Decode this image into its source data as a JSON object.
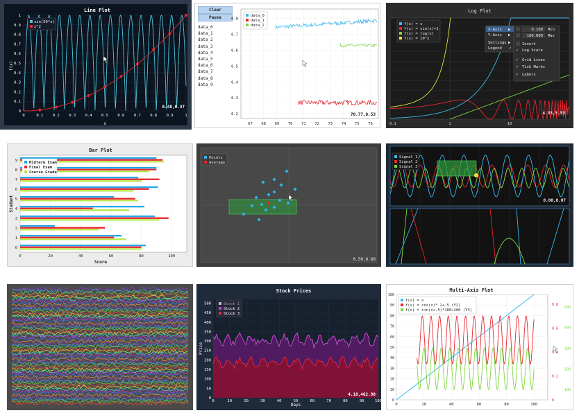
{
  "panel1": {
    "title": "Line Plot",
    "xlabel": "x",
    "ylabel": "f(x)",
    "legend": [
      "sin(50*x)",
      "x^2"
    ],
    "coord": "0.48,0.37",
    "xticks": [
      "0",
      "0.1",
      "0.2",
      "0.3",
      "0.4",
      "0.5",
      "0.6",
      "0.7",
      "0.8",
      "0.9",
      "1"
    ],
    "yticks": [
      "0",
      "0.1",
      "0.2",
      "0.3",
      "0.4",
      "0.5",
      "0.6",
      "0.7",
      "0.8",
      "0.9",
      "1"
    ],
    "colors": {
      "sin": "#4fc3d9",
      "sq": "#e8262e"
    }
  },
  "panel2": {
    "buttons": {
      "clear": "Clear",
      "pause": "Pause"
    },
    "items": [
      "data_0",
      "data_1",
      "data_2",
      "data_3",
      "data_4",
      "data_5",
      "data_6",
      "data_7",
      "data_8",
      "data_9"
    ],
    "legend": [
      "data_0",
      "data_1",
      "data_2"
    ],
    "coord": "70.77,0.53",
    "xticks": [
      "67",
      "68",
      "69",
      "70",
      "71",
      "72",
      "73",
      "74",
      "75",
      "76"
    ],
    "yticks": [
      "0.2",
      "0.3",
      "0.4",
      "0.5",
      "0.6",
      "0.7",
      "0.8"
    ]
  },
  "panel3": {
    "title": "Log Plot",
    "legend": [
      "f(x) = x",
      "f(x) = sin(x)+1",
      "f(x) = log(x)",
      "f(x) = 10^x"
    ],
    "menu": {
      "xaxis": "X-Axis",
      "yaxis": "Y-Axis",
      "settings": "Settings",
      "legend": "Legend"
    },
    "submenu": {
      "min_val": "0.100",
      "min_label": "Min",
      "max_val": "100.000",
      "max_label": "Max",
      "invert": "Invert",
      "log": "Log Scale",
      "grid": "Grid Lines",
      "ticks": "Tick Marks",
      "labels": "Labels"
    },
    "coord": "4.33,5.53",
    "xticks": [
      "0.1",
      "1",
      "10"
    ],
    "yticks": [
      "0",
      "1",
      "2",
      "3",
      "4",
      "5",
      "6",
      "7",
      "8",
      "9",
      "10"
    ]
  },
  "panel4": {
    "title": "Bar Plot",
    "xlabel": "Score",
    "ylabel": "Student",
    "legend": [
      "Midterm Exam",
      "Final Exam",
      "Course Grade"
    ],
    "xticks": [
      "0",
      "20",
      "40",
      "60",
      "80",
      "100"
    ],
    "yticks": [
      "0",
      "1",
      "2",
      "3",
      "4",
      "5",
      "6",
      "7",
      "8",
      "9"
    ],
    "chart_data": {
      "type": "bar",
      "categories": [
        "0",
        "1",
        "2",
        "3",
        "4",
        "5",
        "6",
        "7",
        "8",
        "9"
      ],
      "series": [
        {
          "name": "Midterm Exam",
          "values": [
            83,
            67,
            23,
            89,
            82,
            62,
            91,
            78,
            90,
            90
          ]
        },
        {
          "name": "Final Exam",
          "values": [
            80,
            62,
            56,
            98,
            48,
            76,
            85,
            92,
            90,
            94
          ]
        },
        {
          "name": "Course Grade",
          "values": [
            80,
            70,
            52,
            92,
            72,
            78,
            75,
            80,
            85,
            95
          ]
        }
      ],
      "xlim": [
        0,
        110
      ]
    },
    "colors": [
      "#22a7e8",
      "#e8262e",
      "#b7e84a"
    ]
  },
  "panel5": {
    "legend": [
      "Points",
      "Average"
    ],
    "coord": "0.50,0.60"
  },
  "panel6": {
    "legend": [
      "Signal 1",
      "Signal 2",
      "Signal 3"
    ],
    "coord": "0.00,0.07"
  },
  "panel8": {
    "title": "Stock Prices",
    "xlabel": "Days",
    "ylabel": "Price",
    "legend": [
      "Stock 1",
      "Stock 2",
      "Stock 3"
    ],
    "coord": "4.10,462.90",
    "xticks": [
      "0",
      "10",
      "20",
      "30",
      "40",
      "50",
      "60",
      "70",
      "80",
      "90",
      "100"
    ],
    "yticks": [
      "0",
      "50",
      "100",
      "150",
      "200",
      "250",
      "300",
      "350",
      "400",
      "450",
      "500"
    ]
  },
  "panel9": {
    "title": "Multi-Axis Plot",
    "legend": [
      "f(x) = x",
      "f(x) = cos(x)*.2+.5 (Y2)",
      "f(x) = sin(x+.5)*100+200 (Y3)"
    ],
    "xticks": [
      "0",
      "20",
      "40",
      "60",
      "80",
      "100"
    ],
    "yticks": [
      "0",
      "10",
      "20",
      "30",
      "40",
      "50",
      "60",
      "70",
      "80",
      "90",
      "100"
    ],
    "y2ticks": [
      "0",
      "0.2",
      "0.4",
      "0.6",
      "0.8"
    ],
    "y3ticks": [
      "100",
      "200",
      "300",
      "400",
      "500"
    ]
  }
}
